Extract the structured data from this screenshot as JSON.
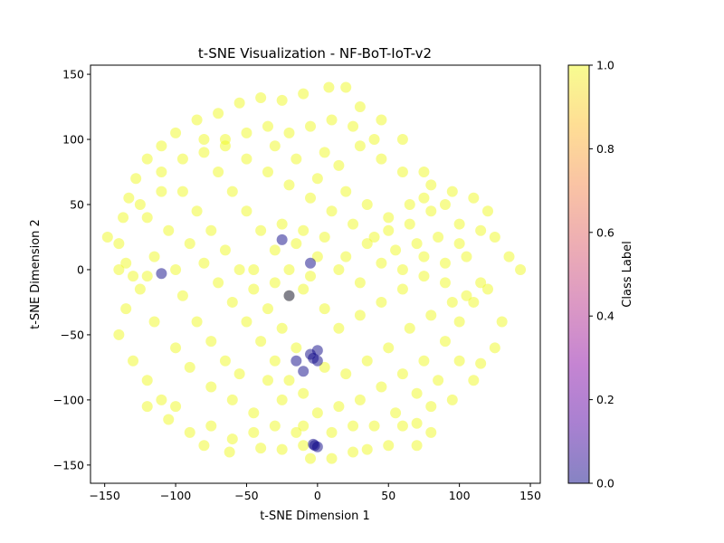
{
  "chart_data": {
    "type": "scatter",
    "title": "t-SNE Visualization - NF-BoT-IoT-v2",
    "xlabel": "t-SNE Dimension 1",
    "ylabel": "t-SNE Dimension 2",
    "xlim": [
      -160,
      157
    ],
    "ylim": [
      -164,
      157
    ],
    "xticks": [
      -150,
      -100,
      -50,
      0,
      50,
      100,
      150
    ],
    "yticks": [
      -150,
      -100,
      -50,
      0,
      50,
      100,
      150
    ],
    "grid": false,
    "colormap": "plasma",
    "marker_alpha": 0.5,
    "colorbar": {
      "label": "Class Label",
      "range": [
        0.0,
        1.0
      ],
      "ticks": [
        "0.0",
        "0.2",
        "0.4",
        "0.6",
        "0.8",
        "1.0"
      ],
      "colors": [
        "#0d0887",
        "#5302a3",
        "#8b0aa5",
        "#b83289",
        "#db5c68",
        "#f48849",
        "#febd2a",
        "#f0f921"
      ]
    },
    "series": [
      {
        "class": 1,
        "color": "#f0f921",
        "points": [
          [
            -148,
            25
          ],
          [
            -140,
            20
          ],
          [
            -135,
            5
          ],
          [
            -125,
            -15
          ],
          [
            -135,
            -30
          ],
          [
            -140,
            -50
          ],
          [
            -130,
            -70
          ],
          [
            -120,
            -85
          ],
          [
            -110,
            -100
          ],
          [
            -100,
            -105
          ],
          [
            -90,
            -125
          ],
          [
            -80,
            -135
          ],
          [
            -62,
            -140
          ],
          [
            -40,
            -137
          ],
          [
            -25,
            -138
          ],
          [
            -10,
            -135
          ],
          [
            -5,
            -145
          ],
          [
            10,
            -145
          ],
          [
            25,
            -140
          ],
          [
            35,
            -138
          ],
          [
            50,
            -135
          ],
          [
            60,
            -120
          ],
          [
            70,
            -118
          ],
          [
            80,
            -105
          ],
          [
            95,
            -100
          ],
          [
            110,
            -85
          ],
          [
            115,
            -72
          ],
          [
            125,
            -60
          ],
          [
            130,
            -40
          ],
          [
            143,
            0
          ],
          [
            135,
            10
          ],
          [
            125,
            25
          ],
          [
            115,
            30
          ],
          [
            100,
            35
          ],
          [
            90,
            50
          ],
          [
            80,
            65
          ],
          [
            75,
            75
          ],
          [
            60,
            100
          ],
          [
            45,
            115
          ],
          [
            30,
            125
          ],
          [
            20,
            140
          ],
          [
            8,
            140
          ],
          [
            -10,
            135
          ],
          [
            -25,
            130
          ],
          [
            -40,
            132
          ],
          [
            -55,
            128
          ],
          [
            -70,
            120
          ],
          [
            -85,
            115
          ],
          [
            -100,
            105
          ],
          [
            -110,
            95
          ],
          [
            -120,
            85
          ],
          [
            -128,
            70
          ],
          [
            -133,
            55
          ],
          [
            -137,
            40
          ],
          [
            -120,
            40
          ],
          [
            -105,
            30
          ],
          [
            -90,
            20
          ],
          [
            -80,
            5
          ],
          [
            -70,
            -10
          ],
          [
            -60,
            -25
          ],
          [
            -50,
            -40
          ],
          [
            -40,
            -55
          ],
          [
            -30,
            -70
          ],
          [
            -20,
            -85
          ],
          [
            -10,
            -95
          ],
          [
            0,
            -110
          ],
          [
            15,
            -105
          ],
          [
            30,
            -100
          ],
          [
            45,
            -90
          ],
          [
            60,
            -80
          ],
          [
            75,
            -70
          ],
          [
            90,
            -55
          ],
          [
            100,
            -40
          ],
          [
            110,
            -25
          ],
          [
            115,
            -10
          ],
          [
            105,
            10
          ],
          [
            90,
            5
          ],
          [
            75,
            -5
          ],
          [
            60,
            -15
          ],
          [
            45,
            -25
          ],
          [
            30,
            -35
          ],
          [
            15,
            -45
          ],
          [
            5,
            -30
          ],
          [
            -10,
            -15
          ],
          [
            -20,
            0
          ],
          [
            -30,
            15
          ],
          [
            -40,
            30
          ],
          [
            -50,
            45
          ],
          [
            -60,
            60
          ],
          [
            -70,
            75
          ],
          [
            -80,
            90
          ],
          [
            -65,
            95
          ],
          [
            -50,
            85
          ],
          [
            -35,
            75
          ],
          [
            -20,
            65
          ],
          [
            -5,
            55
          ],
          [
            10,
            45
          ],
          [
            25,
            35
          ],
          [
            40,
            25
          ],
          [
            55,
            15
          ],
          [
            70,
            20
          ],
          [
            85,
            25
          ],
          [
            100,
            20
          ],
          [
            -95,
            60
          ],
          [
            -85,
            45
          ],
          [
            -75,
            30
          ],
          [
            -65,
            15
          ],
          [
            -55,
            0
          ],
          [
            -45,
            -15
          ],
          [
            -35,
            -30
          ],
          [
            -25,
            -45
          ],
          [
            -15,
            -60
          ],
          [
            5,
            -75
          ],
          [
            20,
            -80
          ],
          [
            35,
            -70
          ],
          [
            50,
            -60
          ],
          [
            65,
            -45
          ],
          [
            80,
            -35
          ],
          [
            95,
            -25
          ],
          [
            -110,
            60
          ],
          [
            -115,
            10
          ],
          [
            -120,
            -5
          ],
          [
            -115,
            -40
          ],
          [
            -100,
            -60
          ],
          [
            -90,
            -75
          ],
          [
            -75,
            -90
          ],
          [
            -60,
            -100
          ],
          [
            -45,
            -110
          ],
          [
            -30,
            -120
          ],
          [
            -15,
            -125
          ],
          [
            40,
            -120
          ],
          [
            55,
            -110
          ],
          [
            70,
            -95
          ],
          [
            85,
            -85
          ],
          [
            100,
            -70
          ],
          [
            5,
            90
          ],
          [
            15,
            80
          ],
          [
            30,
            95
          ],
          [
            45,
            85
          ],
          [
            60,
            75
          ],
          [
            75,
            55
          ],
          [
            -5,
            110
          ],
          [
            -20,
            105
          ],
          [
            -35,
            110
          ],
          [
            -50,
            105
          ],
          [
            -65,
            100
          ],
          [
            10,
            115
          ],
          [
            25,
            110
          ],
          [
            40,
            100
          ],
          [
            0,
            70
          ],
          [
            -15,
            85
          ],
          [
            -30,
            95
          ],
          [
            20,
            60
          ],
          [
            35,
            50
          ],
          [
            50,
            40
          ],
          [
            65,
            35
          ],
          [
            -45,
            0
          ],
          [
            -30,
            -10
          ],
          [
            -15,
            20
          ],
          [
            0,
            10
          ],
          [
            15,
            0
          ],
          [
            30,
            -10
          ],
          [
            45,
            5
          ],
          [
            60,
            0
          ],
          [
            75,
            10
          ],
          [
            90,
            -10
          ],
          [
            105,
            -20
          ],
          [
            120,
            -15
          ],
          [
            -100,
            0
          ],
          [
            -95,
            -20
          ],
          [
            -85,
            -40
          ],
          [
            -75,
            -55
          ],
          [
            -65,
            -70
          ],
          [
            -55,
            -80
          ],
          [
            -35,
            -85
          ],
          [
            -25,
            -100
          ],
          [
            -10,
            -120
          ],
          [
            10,
            -125
          ],
          [
            25,
            -120
          ],
          [
            -130,
            -5
          ],
          [
            -140,
            0
          ],
          [
            -125,
            50
          ],
          [
            -110,
            75
          ],
          [
            -95,
            85
          ],
          [
            -80,
            100
          ],
          [
            -75,
            -120
          ],
          [
            -60,
            -130
          ],
          [
            -45,
            -125
          ],
          [
            70,
            -135
          ],
          [
            80,
            -125
          ],
          [
            -105,
            -115
          ],
          [
            -120,
            -105
          ],
          [
            20,
            10
          ],
          [
            35,
            20
          ],
          [
            50,
            30
          ],
          [
            65,
            50
          ],
          [
            80,
            45
          ],
          [
            95,
            60
          ],
          [
            110,
            55
          ],
          [
            120,
            45
          ],
          [
            -5,
            -5
          ],
          [
            -20,
            -20
          ],
          [
            -25,
            35
          ],
          [
            -10,
            30
          ],
          [
            5,
            25
          ]
        ]
      },
      {
        "class": 0,
        "color": "#0d0887",
        "points": [
          [
            -110,
            -3
          ],
          [
            -20,
            -20
          ],
          [
            -5,
            5
          ],
          [
            0,
            -62
          ],
          [
            -5,
            -65
          ],
          [
            0,
            -70
          ],
          [
            -3,
            -68
          ],
          [
            -2,
            -135
          ],
          [
            0,
            -136
          ],
          [
            -3,
            -134
          ],
          [
            -25,
            23
          ],
          [
            -10,
            -78
          ],
          [
            -15,
            -70
          ]
        ]
      }
    ]
  }
}
